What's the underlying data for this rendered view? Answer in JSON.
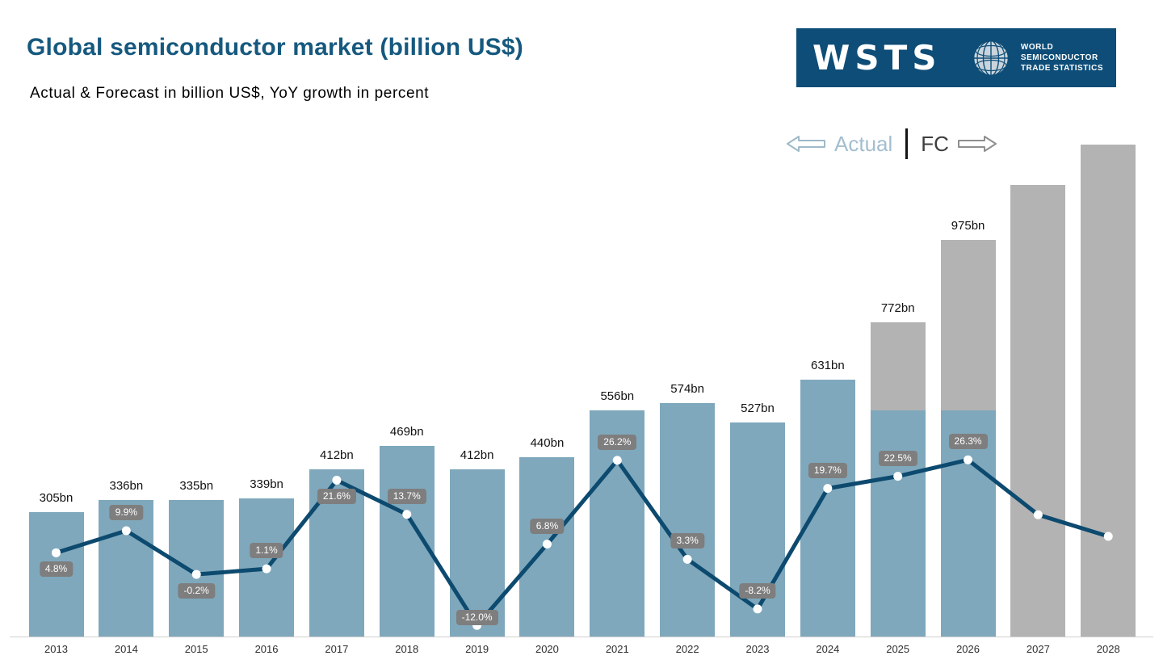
{
  "header": {
    "title": "Global semiconductor market (billion US$)",
    "subtitle": "Actual & Forecast in billion US$, YoY growth in percent"
  },
  "logo": {
    "wordmark": "WSTS",
    "org_lines": [
      "WORLD",
      "SEMICONDUCTOR",
      "TRADE STATISTICS"
    ]
  },
  "legend": {
    "actual_label": "Actual",
    "fc_label": "FC"
  },
  "colors": {
    "title": "#16597f",
    "logo_bg": "#0d4d77",
    "actual_bar": "#7fa8bc",
    "forecast_bar": "#b3b3b3",
    "line": "#0d4a6f",
    "dot": "#ffffff",
    "badge_bg": "#7e7e7e",
    "badge_text": "#ffffff",
    "legend_actual_text": "#a3bed0"
  },
  "chart_data": {
    "type": "bar+line",
    "title": "Global semiconductor market (billion US$)",
    "bar_series_name": "Market size (billion US$)",
    "line_series_name": "YoY growth (%)",
    "categories": [
      "2013",
      "2014",
      "2015",
      "2016",
      "2017",
      "2018",
      "2019",
      "2020",
      "2021",
      "2022",
      "2023",
      "2024",
      "2025",
      "2026",
      "2027",
      "2028"
    ],
    "legend_position": "top-right",
    "grid": false,
    "notes": "2027 and 2028 bars and line points shown without data labels; their values are estimated from the drawing. 2025 and 2026 bars are part blue (actual) with gray (forecast) tops.",
    "bars": [
      {
        "year": "2013",
        "value_bn": 305,
        "value_label": "305bn",
        "segment": "actual",
        "yoy_growth_pct": 4.8,
        "growth_label": "4.8%",
        "growth_label_pos": "below"
      },
      {
        "year": "2014",
        "value_bn": 336,
        "value_label": "336bn",
        "segment": "actual",
        "yoy_growth_pct": 9.9,
        "growth_label": "9.9%",
        "growth_label_pos": "above"
      },
      {
        "year": "2015",
        "value_bn": 335,
        "value_label": "335bn",
        "segment": "actual",
        "yoy_growth_pct": -0.2,
        "growth_label": "-0.2%",
        "growth_label_pos": "below"
      },
      {
        "year": "2016",
        "value_bn": 339,
        "value_label": "339bn",
        "segment": "actual",
        "yoy_growth_pct": 1.1,
        "growth_label": "1.1%",
        "growth_label_pos": "above"
      },
      {
        "year": "2017",
        "value_bn": 412,
        "value_label": "412bn",
        "segment": "actual",
        "yoy_growth_pct": 21.6,
        "growth_label": "21.6%",
        "growth_label_pos": "below"
      },
      {
        "year": "2018",
        "value_bn": 469,
        "value_label": "469bn",
        "segment": "actual",
        "yoy_growth_pct": 13.7,
        "growth_label": "13.7%",
        "growth_label_pos": "above"
      },
      {
        "year": "2019",
        "value_bn": 412,
        "value_label": "412bn",
        "segment": "actual",
        "yoy_growth_pct": -12.0,
        "growth_label": "-12.0%",
        "growth_label_pos": "on"
      },
      {
        "year": "2020",
        "value_bn": 440,
        "value_label": "440bn",
        "segment": "actual",
        "yoy_growth_pct": 6.8,
        "growth_label": "6.8%",
        "growth_label_pos": "above"
      },
      {
        "year": "2021",
        "value_bn": 556,
        "value_label": "556bn",
        "segment": "actual",
        "yoy_growth_pct": 26.2,
        "growth_label": "26.2%",
        "growth_label_pos": "above"
      },
      {
        "year": "2022",
        "value_bn": 574,
        "value_label": "574bn",
        "segment": "actual",
        "yoy_growth_pct": 3.3,
        "growth_label": "3.3%",
        "growth_label_pos": "above"
      },
      {
        "year": "2023",
        "value_bn": 527,
        "value_label": "527bn",
        "segment": "actual",
        "yoy_growth_pct": -8.2,
        "growth_label": "-8.2%",
        "growth_label_pos": "above"
      },
      {
        "year": "2024",
        "value_bn": 631,
        "value_label": "631bn",
        "segment": "actual",
        "yoy_growth_pct": 19.7,
        "growth_label": "19.7%",
        "growth_label_pos": "above"
      },
      {
        "year": "2025",
        "value_bn": 772,
        "value_label": "772bn",
        "segment": "mixed",
        "actual_fraction": 0.72,
        "yoy_growth_pct": 22.5,
        "growth_label": "22.5%",
        "growth_label_pos": "above"
      },
      {
        "year": "2026",
        "value_bn": 975,
        "value_label": "975bn",
        "segment": "mixed",
        "actual_fraction": 0.57,
        "yoy_growth_pct": 26.3,
        "growth_label": "26.3%",
        "growth_label_pos": "above"
      },
      {
        "year": "2027",
        "value_bn": 1110,
        "value_label": "",
        "segment": "forecast",
        "yoy_growth_pct": 13.6,
        "growth_label": "",
        "growth_label_pos": "above",
        "estimated": true
      },
      {
        "year": "2028",
        "value_bn": 1210,
        "value_label": "",
        "segment": "forecast",
        "yoy_growth_pct": 8.6,
        "growth_label": "",
        "growth_label_pos": "above",
        "estimated": true
      }
    ]
  }
}
